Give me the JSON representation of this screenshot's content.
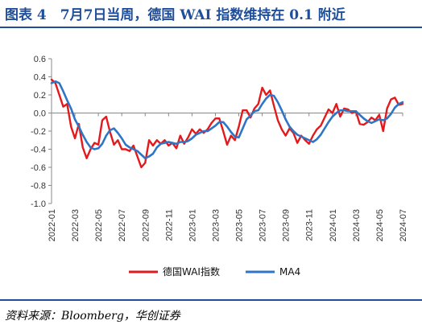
{
  "header": {
    "title": "图表 4　7月7日当周，德国 WAI 指数维持在 0.1 附近"
  },
  "footer": {
    "source": "资料来源：Bloomberg，华创证券"
  },
  "colors": {
    "series_red": "#e31a1c",
    "series_blue": "#2e75c6",
    "axis": "#888888",
    "rule": "#1f4e9b"
  },
  "chart_data": {
    "type": "line",
    "ylim": [
      -1.0,
      0.6
    ],
    "yticks": [
      "0.6",
      "0.4",
      "0.2",
      "0.0",
      "-0.2",
      "-0.4",
      "-0.6",
      "-0.8",
      "-1.0"
    ],
    "xticks": [
      "2022-01",
      "2022-03",
      "2022-05",
      "2022-07",
      "2022-09",
      "2022-11",
      "2023-01",
      "2023-03",
      "2023-05",
      "2023-07",
      "2023-09",
      "2023-11",
      "2024-01",
      "2024-03",
      "2024-05",
      "2024-07"
    ],
    "x_start": "2022-01",
    "x_end": "2024-07",
    "legend_position": "bottom",
    "series": [
      {
        "name": "德国WAI指数",
        "color": "#e31a1c",
        "values": [
          0.37,
          0.33,
          0.2,
          0.07,
          0.1,
          -0.15,
          -0.28,
          -0.12,
          -0.38,
          -0.5,
          -0.4,
          -0.33,
          -0.35,
          -0.08,
          -0.04,
          -0.21,
          -0.35,
          -0.3,
          -0.4,
          -0.4,
          -0.42,
          -0.36,
          -0.48,
          -0.6,
          -0.55,
          -0.3,
          -0.36,
          -0.3,
          -0.34,
          -0.3,
          -0.36,
          -0.33,
          -0.39,
          -0.25,
          -0.34,
          -0.27,
          -0.18,
          -0.23,
          -0.18,
          -0.22,
          -0.18,
          -0.11,
          -0.06,
          -0.06,
          -0.2,
          -0.35,
          -0.25,
          -0.3,
          -0.15,
          0.03,
          0.03,
          -0.05,
          0.05,
          0.1,
          0.28,
          0.2,
          0.25,
          0.08,
          -0.08,
          -0.18,
          -0.25,
          -0.17,
          -0.22,
          -0.33,
          -0.25,
          -0.3,
          -0.34,
          -0.25,
          -0.18,
          -0.14,
          -0.05,
          0.04,
          0.0,
          0.1,
          -0.04,
          0.05,
          0.04,
          0.0,
          0.02,
          -0.12,
          -0.13,
          -0.1,
          -0.05,
          -0.08,
          -0.02,
          -0.2,
          0.05,
          0.15,
          0.17,
          0.09,
          0.1
        ]
      },
      {
        "name": "MA4",
        "color": "#2e75c6",
        "values": [
          0.33,
          0.35,
          0.33,
          0.24,
          0.14,
          0.05,
          -0.07,
          -0.15,
          -0.24,
          -0.32,
          -0.38,
          -0.4,
          -0.39,
          -0.34,
          -0.25,
          -0.19,
          -0.17,
          -0.22,
          -0.28,
          -0.35,
          -0.38,
          -0.4,
          -0.42,
          -0.46,
          -0.5,
          -0.48,
          -0.45,
          -0.38,
          -0.34,
          -0.33,
          -0.32,
          -0.33,
          -0.34,
          -0.32,
          -0.32,
          -0.31,
          -0.28,
          -0.24,
          -0.22,
          -0.2,
          -0.2,
          -0.17,
          -0.14,
          -0.1,
          -0.1,
          -0.15,
          -0.21,
          -0.26,
          -0.27,
          -0.17,
          -0.07,
          -0.03,
          0.02,
          0.03,
          0.1,
          0.16,
          0.2,
          0.19,
          0.12,
          0.03,
          -0.07,
          -0.15,
          -0.2,
          -0.24,
          -0.26,
          -0.28,
          -0.3,
          -0.32,
          -0.29,
          -0.24,
          -0.17,
          -0.1,
          -0.04,
          0.0,
          0.03,
          0.03,
          0.02,
          0.02,
          0.02,
          -0.02,
          -0.06,
          -0.09,
          -0.11,
          -0.09,
          -0.07,
          -0.08,
          -0.06,
          -0.01,
          0.06,
          0.1,
          0.12
        ]
      }
    ]
  }
}
